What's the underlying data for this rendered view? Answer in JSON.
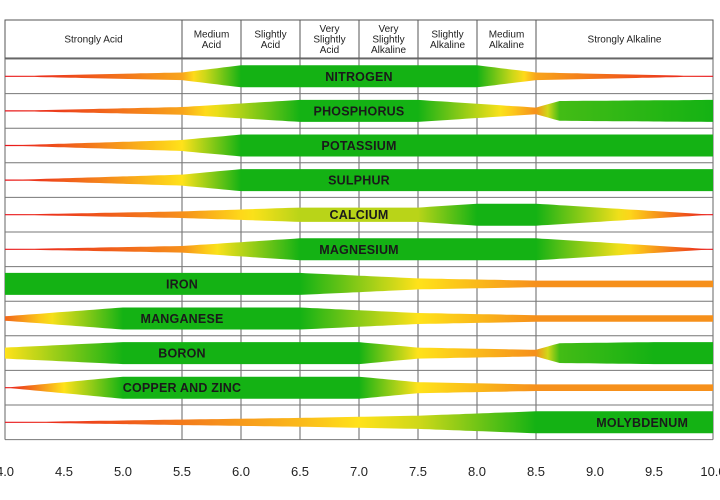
{
  "chart_data": {
    "type": "band",
    "x_axis": {
      "min": 4.0,
      "max": 10.0,
      "ticks": [
        "4.0",
        "4.5",
        "5.0",
        "5.5",
        "6.0",
        "6.5",
        "7.0",
        "7.5",
        "8.0",
        "8.5",
        "9.0",
        "9.5",
        "10.0"
      ]
    },
    "header_zones": [
      {
        "label": [
          "Strongly Acid"
        ],
        "from": 4.0,
        "to": 5.5
      },
      {
        "label": [
          "Medium",
          "Acid"
        ],
        "from": 5.5,
        "to": 6.0
      },
      {
        "label": [
          "Slightly",
          "Acid"
        ],
        "from": 6.0,
        "to": 6.5
      },
      {
        "label": [
          "Very",
          "Slightly",
          "Acid"
        ],
        "from": 6.5,
        "to": 7.0
      },
      {
        "label": [
          "Very",
          "Slightly",
          "Alkaline"
        ],
        "from": 7.0,
        "to": 7.5
      },
      {
        "label": [
          "Slightly",
          "Alkaline"
        ],
        "from": 7.5,
        "to": 8.0
      },
      {
        "label": [
          "Medium",
          "Alkaline"
        ],
        "from": 8.0,
        "to": 8.5
      },
      {
        "label": [
          "Strongly Alkaline"
        ],
        "from": 8.5,
        "to": 10.0
      }
    ],
    "colors": {
      "low": "#e8141c",
      "mid": "#ffe21a",
      "high": "#14b214"
    },
    "nutrients": [
      {
        "name": "NITROGEN",
        "label_at": 7.0,
        "profile": [
          [
            4.0,
            0.0
          ],
          [
            5.5,
            0.35
          ],
          [
            6.0,
            1.0
          ],
          [
            8.0,
            1.0
          ],
          [
            8.5,
            0.35
          ],
          [
            10.0,
            0.0
          ]
        ]
      },
      {
        "name": "PHOSPHORUS",
        "label_at": 7.0,
        "profile": [
          [
            4.0,
            0.0
          ],
          [
            5.5,
            0.35
          ],
          [
            6.5,
            1.0
          ],
          [
            7.5,
            1.0
          ],
          [
            8.5,
            0.3
          ],
          [
            8.7,
            0.9
          ],
          [
            10.0,
            1.0
          ]
        ]
      },
      {
        "name": "POTASSIUM",
        "label_at": 7.0,
        "profile": [
          [
            4.0,
            0.0
          ],
          [
            5.5,
            0.5
          ],
          [
            6.0,
            1.0
          ],
          [
            10.0,
            1.0
          ]
        ]
      },
      {
        "name": "SULPHUR",
        "label_at": 7.0,
        "profile": [
          [
            4.0,
            0.0
          ],
          [
            5.5,
            0.5
          ],
          [
            6.0,
            1.0
          ],
          [
            10.0,
            1.0
          ]
        ]
      },
      {
        "name": "CALCIUM",
        "label_at": 7.0,
        "profile": [
          [
            4.0,
            0.0
          ],
          [
            5.5,
            0.3
          ],
          [
            6.5,
            0.65
          ],
          [
            7.5,
            0.65
          ],
          [
            8.0,
            1.0
          ],
          [
            8.5,
            1.0
          ],
          [
            10.0,
            0.0
          ]
        ]
      },
      {
        "name": "MAGNESIUM",
        "label_at": 7.0,
        "profile": [
          [
            4.0,
            0.0
          ],
          [
            5.5,
            0.3
          ],
          [
            6.5,
            1.0
          ],
          [
            8.5,
            1.0
          ],
          [
            10.0,
            0.0
          ]
        ]
      },
      {
        "name": "IRON",
        "label_at": 5.5,
        "profile": [
          [
            4.0,
            1.0
          ],
          [
            6.5,
            1.0
          ],
          [
            7.5,
            0.5
          ],
          [
            8.5,
            0.3
          ],
          [
            10.0,
            0.3
          ]
        ]
      },
      {
        "name": "MANGANESE",
        "label_at": 5.5,
        "profile": [
          [
            4.0,
            0.2
          ],
          [
            5.0,
            1.0
          ],
          [
            6.5,
            1.0
          ],
          [
            7.5,
            0.5
          ],
          [
            8.5,
            0.3
          ],
          [
            10.0,
            0.3
          ]
        ]
      },
      {
        "name": "BORON",
        "label_at": 5.5,
        "profile": [
          [
            4.0,
            0.5
          ],
          [
            5.0,
            1.0
          ],
          [
            7.0,
            1.0
          ],
          [
            7.5,
            0.5
          ],
          [
            8.5,
            0.3
          ],
          [
            8.7,
            0.9
          ],
          [
            9.5,
            1.0
          ],
          [
            10.0,
            1.0
          ]
        ]
      },
      {
        "name": "COPPER AND ZINC",
        "label_at": 5.5,
        "profile": [
          [
            4.0,
            0.0
          ],
          [
            5.0,
            1.0
          ],
          [
            7.0,
            1.0
          ],
          [
            7.5,
            0.5
          ],
          [
            8.5,
            0.3
          ],
          [
            10.0,
            0.3
          ]
        ]
      },
      {
        "name": "MOLYBDENUM",
        "label_at": 9.4,
        "profile": [
          [
            4.0,
            0.0
          ],
          [
            5.5,
            0.25
          ],
          [
            6.5,
            0.4
          ],
          [
            7.5,
            0.6
          ],
          [
            8.5,
            1.0
          ],
          [
            10.0,
            1.0
          ]
        ]
      }
    ]
  }
}
